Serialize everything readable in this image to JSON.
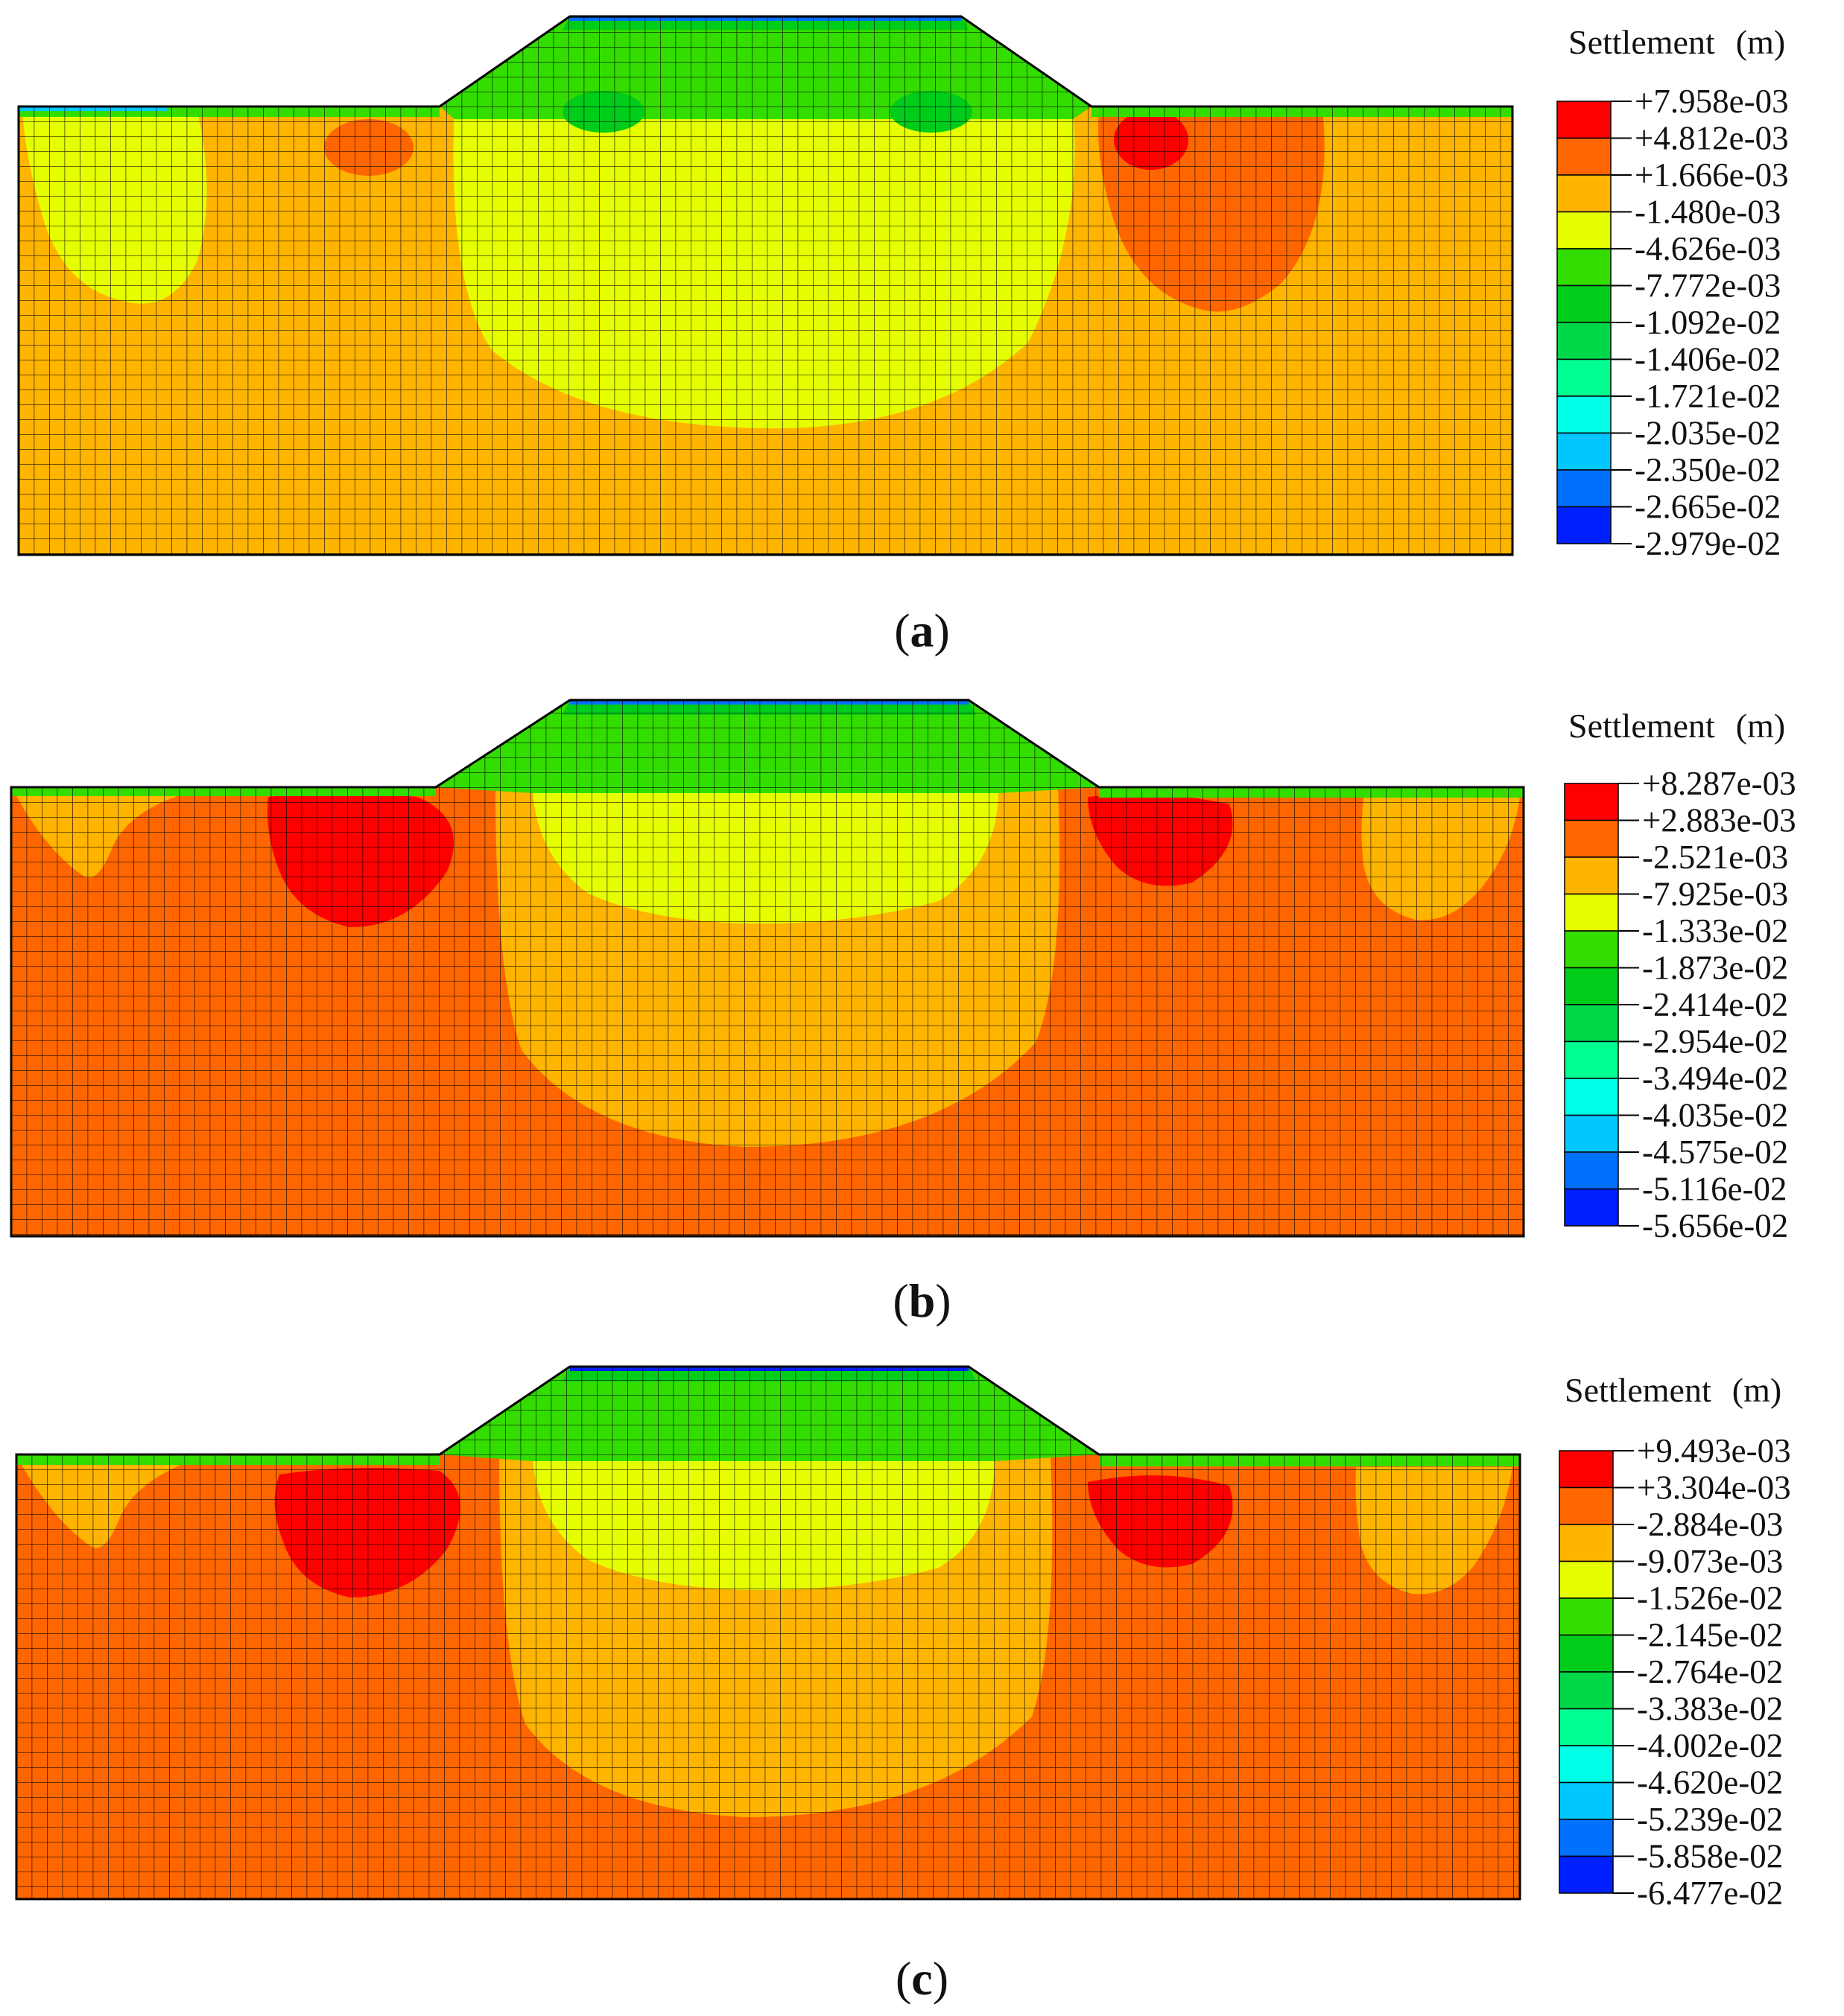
{
  "figure": {
    "panels": [
      {
        "id": "a",
        "caption_letter": "a",
        "legend_title": "Settlement",
        "legend_unit": "(m)",
        "legend_values": [
          "+7.958e-03",
          "+4.812e-03",
          "+1.666e-03",
          "-1.480e-03",
          "-4.626e-03",
          "-7.772e-03",
          "-1.092e-02",
          "-1.406e-02",
          "-1.721e-02",
          "-2.035e-02",
          "-2.350e-02",
          "-2.665e-02",
          "-2.979e-02"
        ]
      },
      {
        "id": "b",
        "caption_letter": "b",
        "legend_title": "Settlement",
        "legend_unit": "(m)",
        "legend_values": [
          "+8.287e-03",
          "+2.883e-03",
          "-2.521e-03",
          "-7.925e-03",
          "-1.333e-02",
          "-1.873e-02",
          "-2.414e-02",
          "-2.954e-02",
          "-3.494e-02",
          "-4.035e-02",
          "-4.575e-02",
          "-5.116e-02",
          "-5.656e-02"
        ]
      },
      {
        "id": "c",
        "caption_letter": "c",
        "legend_title": "Settlement",
        "legend_unit": "(m)",
        "legend_values": [
          "+9.493e-03",
          "+3.304e-03",
          "-2.884e-03",
          "-9.073e-03",
          "-1.526e-02",
          "-2.145e-02",
          "-2.764e-02",
          "-3.383e-02",
          "-4.002e-02",
          "-4.620e-02",
          "-5.239e-02",
          "-5.858e-02",
          "-6.477e-02"
        ]
      }
    ],
    "colormap": [
      "#ff0000",
      "#ff6600",
      "#ffb400",
      "#e6ff00",
      "#33dd00",
      "#00cc1a",
      "#00d84a",
      "#00ff90",
      "#00ffe6",
      "#00c8ff",
      "#0070ff",
      "#0020ff"
    ],
    "mesh_line_color": "#000000"
  }
}
